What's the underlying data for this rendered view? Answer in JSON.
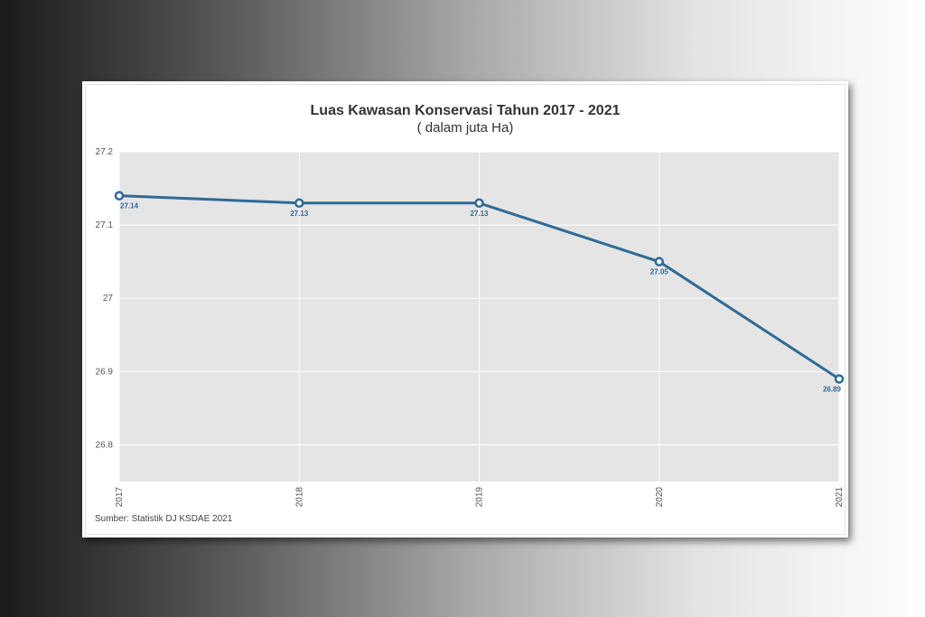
{
  "chart_data": {
    "type": "line",
    "title": "Luas Kawasan Konservasi Tahun 2017 - 2021",
    "subtitle": "( dalam juta Ha)",
    "source": "Sumber: Statistik DJ KSDAE 2021",
    "x": [
      "2017",
      "2018",
      "2019",
      "2020",
      "2021"
    ],
    "series": [
      {
        "values": [
          27.14,
          27.13,
          27.13,
          27.05,
          26.89
        ]
      }
    ],
    "data_labels": [
      "27.14",
      "27.13",
      "27.13",
      "27.05",
      "26.89"
    ],
    "ylim": [
      26.75,
      27.2
    ],
    "yticks": [
      26.8,
      26.9,
      27,
      27.1,
      27.2
    ],
    "ytick_labels": [
      "26.8",
      "26.9",
      "27",
      "27.1",
      "27.2"
    ],
    "grid": true,
    "colors": {
      "line": "#2e6a96",
      "plot_background": "#e5e5e5",
      "label": "#2e6a96"
    }
  }
}
